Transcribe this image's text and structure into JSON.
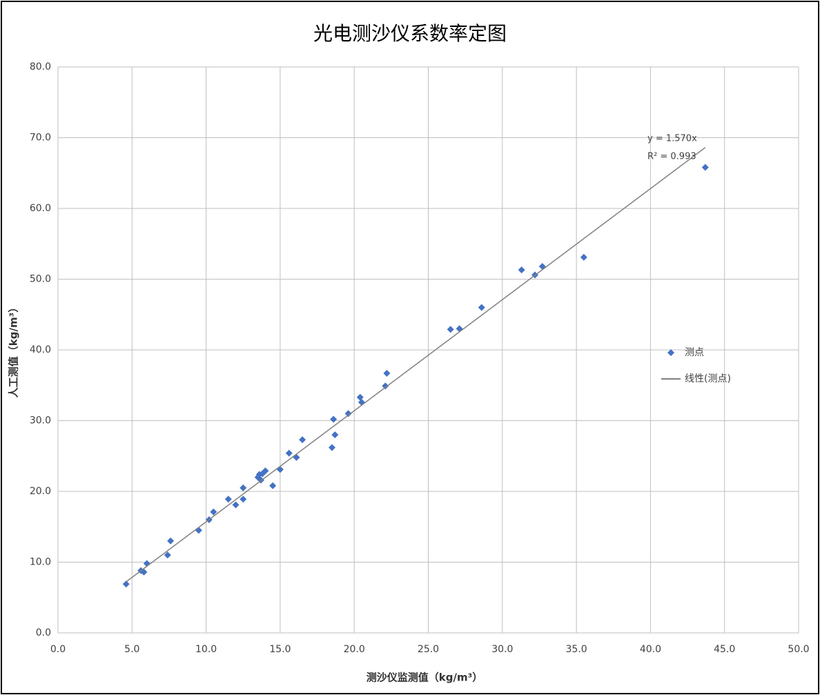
{
  "chart_data": {
    "type": "scatter",
    "title": "光电测沙仪系数率定图",
    "x_label": "测沙仪监测值（kg/m³）",
    "y_label": "人工测值（kg/m³）",
    "series": [
      {
        "name": "测点",
        "color": "#4472c4",
        "x": [
          4.6,
          5.6,
          5.8,
          6.0,
          7.4,
          7.6,
          9.5,
          10.2,
          10.5,
          11.5,
          12.0,
          12.5,
          12.5,
          13.5,
          13.6,
          13.7,
          13.8,
          14.0,
          14.5,
          15.0,
          15.6,
          16.1,
          16.5,
          18.5,
          18.6,
          18.7,
          19.6,
          20.4,
          20.5,
          22.1,
          22.2,
          26.5,
          27.1,
          28.6,
          31.3,
          32.2,
          32.7,
          35.5,
          43.7
        ],
        "values": [
          6.9,
          8.8,
          8.6,
          9.8,
          11.0,
          13.0,
          14.5,
          16.0,
          17.1,
          18.9,
          18.1,
          18.9,
          20.5,
          22.0,
          22.4,
          21.6,
          22.5,
          22.9,
          20.8,
          23.1,
          25.4,
          24.8,
          27.3,
          26.2,
          30.2,
          28.0,
          31.0,
          33.3,
          32.6,
          34.9,
          36.7,
          42.9,
          43.0,
          46.0,
          51.3,
          50.6,
          51.8,
          53.1,
          65.8
        ]
      }
    ],
    "trendline": {
      "name": "线性(测点)",
      "slope": 1.57,
      "color": "#808080",
      "equation": "y = 1.570x",
      "r2": "R² = 0.993"
    },
    "xlim": [
      0,
      50
    ],
    "ylim": [
      0,
      80
    ],
    "xticks": [
      {
        "value": 0,
        "label": "0.0"
      },
      {
        "value": 5,
        "label": "5.0"
      },
      {
        "value": 10,
        "label": "10.0"
      },
      {
        "value": 15,
        "label": "15.0"
      },
      {
        "value": 20,
        "label": "20.0"
      },
      {
        "value": 25,
        "label": "25.0"
      },
      {
        "value": 30,
        "label": "30.0"
      },
      {
        "value": 35,
        "label": "35.0"
      },
      {
        "value": 40,
        "label": "40.0"
      },
      {
        "value": 45,
        "label": "45.0"
      },
      {
        "value": 50,
        "label": "50.0"
      }
    ],
    "yticks": [
      {
        "value": 0,
        "label": "0.0"
      },
      {
        "value": 10,
        "label": "10.0"
      },
      {
        "value": 20,
        "label": "20.0"
      },
      {
        "value": 30,
        "label": "30.0"
      },
      {
        "value": 40,
        "label": "40.0"
      },
      {
        "value": 50,
        "label": "50.0"
      },
      {
        "value": 60,
        "label": "60.0"
      },
      {
        "value": 70,
        "label": "70.0"
      },
      {
        "value": 80,
        "label": "80.0"
      }
    ],
    "grid": true,
    "legend": "right"
  }
}
